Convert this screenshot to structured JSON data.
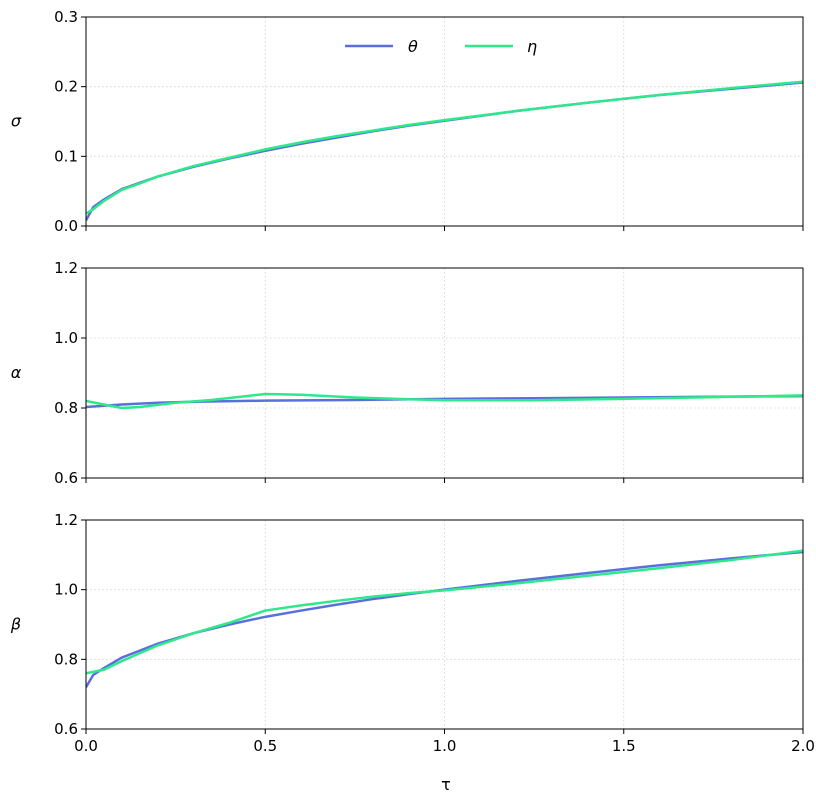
{
  "colors": {
    "theta": "#5a6fde",
    "eta": "#2ee88a",
    "grid": "#cfcfcf",
    "axis": "#000000"
  },
  "chart_data": {
    "type": "line",
    "legend": {
      "placement": "upper-center",
      "entries": [
        "θ",
        "η"
      ]
    },
    "grid": true,
    "x_axis": {
      "label": "τ",
      "xlim": [
        0,
        2
      ],
      "ticks": [
        0,
        0.5,
        1,
        1.5,
        2
      ],
      "tick_labels": [
        "0.0",
        "0.5",
        "1.0",
        "1.5",
        "2.0"
      ]
    },
    "panels": [
      {
        "ylabel": "σ",
        "ylim": [
          0,
          0.3
        ],
        "yticks": [
          0,
          0.1,
          0.2,
          0.3
        ],
        "ytick_labels": [
          "0.0",
          "0.1",
          "0.2",
          "0.3"
        ],
        "show_x_tick_labels": false,
        "series": [
          {
            "name": "θ",
            "color_key": "theta",
            "points": [
              [
                0,
                0.008
              ],
              [
                0.02,
                0.027
              ],
              [
                0.05,
                0.038
              ],
              [
                0.1,
                0.053
              ],
              [
                0.15,
                0.062
              ],
              [
                0.2,
                0.071
              ],
              [
                0.3,
                0.085
              ],
              [
                0.4,
                0.097
              ],
              [
                0.5,
                0.108
              ],
              [
                0.6,
                0.118
              ],
              [
                0.7,
                0.127
              ],
              [
                0.8,
                0.136
              ],
              [
                0.9,
                0.144
              ],
              [
                1.0,
                0.151
              ],
              [
                1.2,
                0.165
              ],
              [
                1.4,
                0.177
              ],
              [
                1.6,
                0.188
              ],
              [
                1.8,
                0.197
              ],
              [
                2.0,
                0.206
              ]
            ]
          },
          {
            "name": "η",
            "color_key": "eta",
            "points": [
              [
                0,
                0.018
              ],
              [
                0.02,
                0.024
              ],
              [
                0.05,
                0.036
              ],
              [
                0.1,
                0.052
              ],
              [
                0.15,
                0.061
              ],
              [
                0.2,
                0.071
              ],
              [
                0.3,
                0.086
              ],
              [
                0.4,
                0.098
              ],
              [
                0.5,
                0.11
              ],
              [
                0.6,
                0.12
              ],
              [
                0.7,
                0.129
              ],
              [
                0.8,
                0.137
              ],
              [
                0.9,
                0.145
              ],
              [
                1.0,
                0.152
              ],
              [
                1.2,
                0.165
              ],
              [
                1.4,
                0.177
              ],
              [
                1.6,
                0.188
              ],
              [
                1.8,
                0.198
              ],
              [
                2.0,
                0.207
              ]
            ]
          }
        ]
      },
      {
        "ylabel": "α",
        "ylim": [
          0.6,
          1.2
        ],
        "yticks": [
          0.6,
          0.8,
          1.0,
          1.2
        ],
        "ytick_labels": [
          "0.6",
          "0.8",
          "1.0",
          "1.2"
        ],
        "show_x_tick_labels": false,
        "series": [
          {
            "name": "θ",
            "color_key": "theta",
            "points": [
              [
                0,
                0.803
              ],
              [
                0.1,
                0.81
              ],
              [
                0.2,
                0.815
              ],
              [
                0.3,
                0.818
              ],
              [
                0.5,
                0.821
              ],
              [
                0.75,
                0.823
              ],
              [
                1.0,
                0.826
              ],
              [
                1.25,
                0.828
              ],
              [
                1.5,
                0.83
              ],
              [
                1.75,
                0.832
              ],
              [
                2.0,
                0.834
              ]
            ]
          },
          {
            "name": "η",
            "color_key": "eta",
            "points": [
              [
                0,
                0.82
              ],
              [
                0.05,
                0.81
              ],
              [
                0.1,
                0.8
              ],
              [
                0.15,
                0.803
              ],
              [
                0.25,
                0.815
              ],
              [
                0.35,
                0.823
              ],
              [
                0.5,
                0.84
              ],
              [
                0.6,
                0.838
              ],
              [
                0.75,
                0.83
              ],
              [
                0.9,
                0.825
              ],
              [
                1.0,
                0.822
              ],
              [
                1.25,
                0.822
              ],
              [
                1.5,
                0.826
              ],
              [
                1.75,
                0.831
              ],
              [
                2.0,
                0.836
              ]
            ]
          }
        ]
      },
      {
        "ylabel": "β",
        "ylim": [
          0.6,
          1.2
        ],
        "yticks": [
          0.6,
          0.8,
          1.0,
          1.2
        ],
        "ytick_labels": [
          "0.6",
          "0.8",
          "1.0",
          "1.2"
        ],
        "show_x_tick_labels": true,
        "series": [
          {
            "name": "θ",
            "color_key": "theta",
            "points": [
              [
                0,
                0.72
              ],
              [
                0.02,
                0.755
              ],
              [
                0.05,
                0.775
              ],
              [
                0.1,
                0.805
              ],
              [
                0.15,
                0.825
              ],
              [
                0.2,
                0.845
              ],
              [
                0.3,
                0.875
              ],
              [
                0.4,
                0.9
              ],
              [
                0.5,
                0.922
              ],
              [
                0.6,
                0.94
              ],
              [
                0.7,
                0.957
              ],
              [
                0.8,
                0.973
              ],
              [
                0.9,
                0.987
              ],
              [
                1.0,
                1.0
              ],
              [
                1.2,
                1.025
              ],
              [
                1.4,
                1.048
              ],
              [
                1.6,
                1.07
              ],
              [
                1.8,
                1.09
              ],
              [
                2.0,
                1.108
              ]
            ]
          },
          {
            "name": "η",
            "color_key": "eta",
            "points": [
              [
                0,
                0.76
              ],
              [
                0.05,
                0.77
              ],
              [
                0.1,
                0.795
              ],
              [
                0.2,
                0.84
              ],
              [
                0.3,
                0.875
              ],
              [
                0.4,
                0.905
              ],
              [
                0.5,
                0.94
              ],
              [
                0.6,
                0.955
              ],
              [
                0.7,
                0.968
              ],
              [
                0.8,
                0.98
              ],
              [
                0.9,
                0.99
              ],
              [
                1.0,
                0.998
              ],
              [
                1.2,
                1.018
              ],
              [
                1.4,
                1.04
              ],
              [
                1.6,
                1.062
              ],
              [
                1.8,
                1.085
              ],
              [
                2.0,
                1.112
              ]
            ]
          }
        ]
      }
    ]
  }
}
